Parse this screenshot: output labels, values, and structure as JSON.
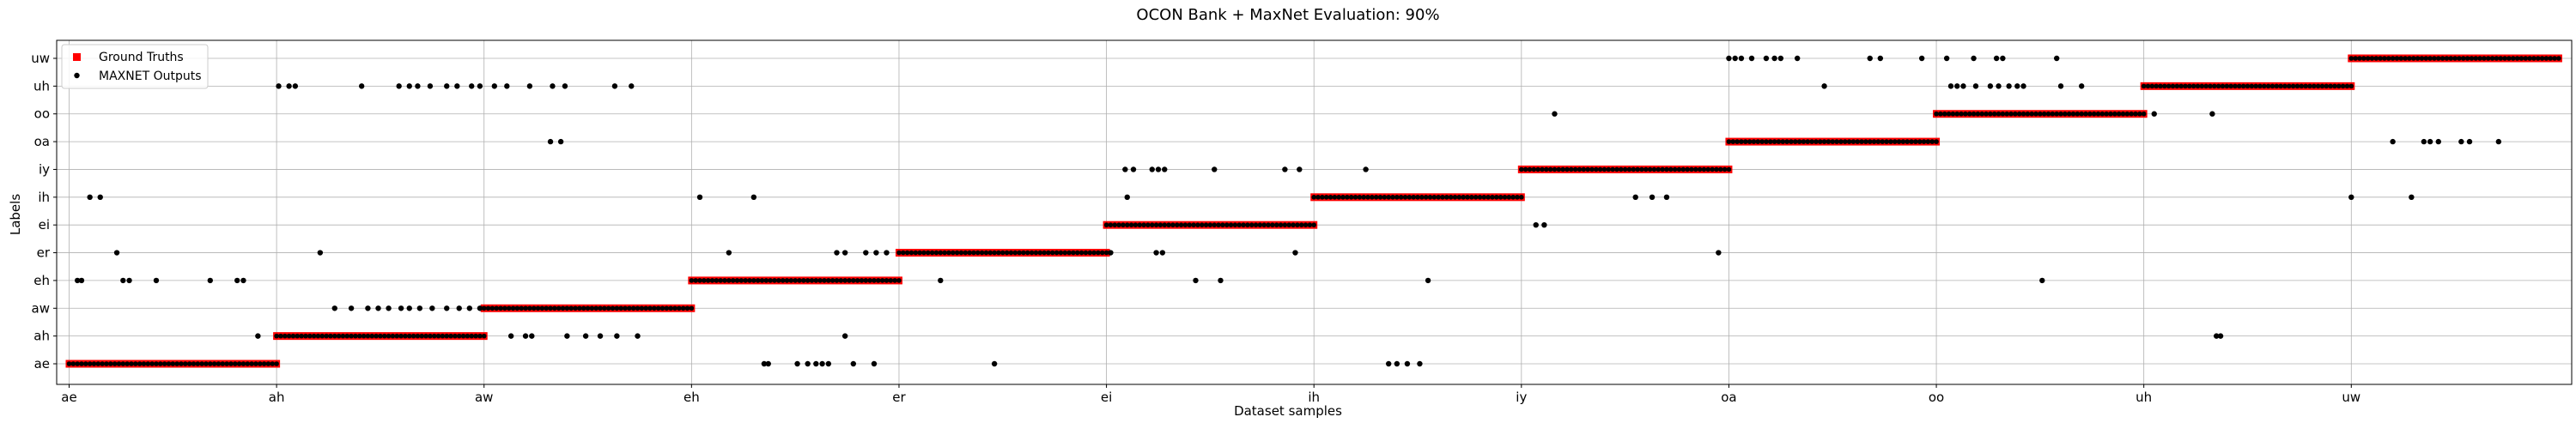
{
  "chart_data": {
    "type": "scatter",
    "title": "OCON Bank + MaxNet Evaluation: 90%",
    "xlabel": "Dataset samples",
    "ylabel": "Labels",
    "y_categories": [
      "ae",
      "ah",
      "aw",
      "eh",
      "er",
      "ei",
      "ih",
      "iy",
      "oa",
      "oo",
      "uh",
      "uw"
    ],
    "x_tick_labels": [
      "ae",
      "ah",
      "aw",
      "eh",
      "er",
      "ei",
      "ih",
      "iy",
      "oa",
      "oo",
      "uh",
      "uw"
    ],
    "x_tick_positions": [
      0,
      100,
      200,
      300,
      400,
      500,
      600,
      700,
      800,
      900,
      1000,
      1100
    ],
    "xlim": [
      -6,
      1205
    ],
    "grid": true,
    "legend_placement": "top-left",
    "legend": [
      "Ground Truths",
      "MAXNET Outputs"
    ],
    "colors": {
      "ground_truth": "#ff0000",
      "maxnet": "#000000",
      "grid": "#b0b0b0"
    },
    "series": [
      {
        "name": "Ground Truths",
        "marker": "square",
        "segments": [
          {
            "label": "ae",
            "x_start": 0,
            "x_end": 100
          },
          {
            "label": "ah",
            "x_start": 100,
            "x_end": 200
          },
          {
            "label": "aw",
            "x_start": 200,
            "x_end": 300
          },
          {
            "label": "eh",
            "x_start": 300,
            "x_end": 400
          },
          {
            "label": "er",
            "x_start": 400,
            "x_end": 500
          },
          {
            "label": "ei",
            "x_start": 500,
            "x_end": 600
          },
          {
            "label": "ih",
            "x_start": 600,
            "x_end": 700
          },
          {
            "label": "iy",
            "x_start": 700,
            "x_end": 800
          },
          {
            "label": "oa",
            "x_start": 800,
            "x_end": 900
          },
          {
            "label": "oo",
            "x_start": 900,
            "x_end": 1000
          },
          {
            "label": "uh",
            "x_start": 1000,
            "x_end": 1100
          },
          {
            "label": "uw",
            "x_start": 1100,
            "x_end": 1200
          }
        ]
      },
      {
        "name": "MAXNET Outputs",
        "marker": "circle",
        "runs": [
          {
            "label": "ae",
            "x_start": 0,
            "x_end": 100,
            "step": 2
          },
          {
            "label": "ah",
            "x_start": 100,
            "x_end": 200,
            "step": 2
          },
          {
            "label": "aw",
            "x_start": 200,
            "x_end": 300,
            "step": 2
          },
          {
            "label": "eh",
            "x_start": 300,
            "x_end": 400,
            "step": 2
          },
          {
            "label": "er",
            "x_start": 400,
            "x_end": 500,
            "step": 2
          },
          {
            "label": "ei",
            "x_start": 500,
            "x_end": 600,
            "step": 2
          },
          {
            "label": "ih",
            "x_start": 600,
            "x_end": 700,
            "step": 2
          },
          {
            "label": "iy",
            "x_start": 700,
            "x_end": 800,
            "step": 2
          },
          {
            "label": "oa",
            "x_start": 800,
            "x_end": 900,
            "step": 2
          },
          {
            "label": "oo",
            "x_start": 900,
            "x_end": 1000,
            "step": 2
          },
          {
            "label": "uh",
            "x_start": 1000,
            "x_end": 1100,
            "step": 2
          },
          {
            "label": "uw",
            "x_start": 1100,
            "x_end": 1200,
            "step": 2
          }
        ],
        "outliers": [
          {
            "x": 4,
            "label": "eh"
          },
          {
            "x": 6,
            "label": "eh"
          },
          {
            "x": 10,
            "label": "ih"
          },
          {
            "x": 15,
            "label": "ih"
          },
          {
            "x": 23,
            "label": "er"
          },
          {
            "x": 26,
            "label": "eh"
          },
          {
            "x": 29,
            "label": "eh"
          },
          {
            "x": 42,
            "label": "eh"
          },
          {
            "x": 68,
            "label": "eh"
          },
          {
            "x": 81,
            "label": "eh"
          },
          {
            "x": 84,
            "label": "eh"
          },
          {
            "x": 91,
            "label": "ah"
          },
          {
            "x": 101,
            "label": "uh"
          },
          {
            "x": 106,
            "label": "uh"
          },
          {
            "x": 109,
            "label": "uh"
          },
          {
            "x": 121,
            "label": "er"
          },
          {
            "x": 128,
            "label": "aw"
          },
          {
            "x": 136,
            "label": "aw"
          },
          {
            "x": 144,
            "label": "aw"
          },
          {
            "x": 149,
            "label": "aw"
          },
          {
            "x": 154,
            "label": "aw"
          },
          {
            "x": 160,
            "label": "aw"
          },
          {
            "x": 141,
            "label": "uh"
          },
          {
            "x": 164,
            "label": "aw"
          },
          {
            "x": 169,
            "label": "aw"
          },
          {
            "x": 175,
            "label": "aw"
          },
          {
            "x": 182,
            "label": "aw"
          },
          {
            "x": 188,
            "label": "aw"
          },
          {
            "x": 193,
            "label": "aw"
          },
          {
            "x": 198,
            "label": "aw"
          },
          {
            "x": 159,
            "label": "uh"
          },
          {
            "x": 164,
            "label": "uh"
          },
          {
            "x": 168,
            "label": "uh"
          },
          {
            "x": 174,
            "label": "uh"
          },
          {
            "x": 182,
            "label": "uh"
          },
          {
            "x": 187,
            "label": "uh"
          },
          {
            "x": 194,
            "label": "uh"
          },
          {
            "x": 198,
            "label": "uh"
          },
          {
            "x": 205,
            "label": "uh"
          },
          {
            "x": 211,
            "label": "uh"
          },
          {
            "x": 222,
            "label": "uh"
          },
          {
            "x": 233,
            "label": "uh"
          },
          {
            "x": 239,
            "label": "uh"
          },
          {
            "x": 263,
            "label": "uh"
          },
          {
            "x": 271,
            "label": "uh"
          },
          {
            "x": 213,
            "label": "ah"
          },
          {
            "x": 220,
            "label": "ah"
          },
          {
            "x": 223,
            "label": "ah"
          },
          {
            "x": 240,
            "label": "ah"
          },
          {
            "x": 249,
            "label": "ah"
          },
          {
            "x": 256,
            "label": "ah"
          },
          {
            "x": 264,
            "label": "ah"
          },
          {
            "x": 274,
            "label": "ah"
          },
          {
            "x": 232,
            "label": "oa"
          },
          {
            "x": 237,
            "label": "oa"
          },
          {
            "x": 304,
            "label": "ih"
          },
          {
            "x": 318,
            "label": "er"
          },
          {
            "x": 330,
            "label": "ih"
          },
          {
            "x": 335,
            "label": "ae"
          },
          {
            "x": 337,
            "label": "ae"
          },
          {
            "x": 351,
            "label": "ae"
          },
          {
            "x": 356,
            "label": "ae"
          },
          {
            "x": 360,
            "label": "ae"
          },
          {
            "x": 363,
            "label": "ae"
          },
          {
            "x": 366,
            "label": "ae"
          },
          {
            "x": 378,
            "label": "ae"
          },
          {
            "x": 388,
            "label": "ae"
          },
          {
            "x": 374,
            "label": "ah"
          },
          {
            "x": 370,
            "label": "er"
          },
          {
            "x": 374,
            "label": "er"
          },
          {
            "x": 384,
            "label": "er"
          },
          {
            "x": 389,
            "label": "er"
          },
          {
            "x": 394,
            "label": "er"
          },
          {
            "x": 420,
            "label": "eh"
          },
          {
            "x": 446,
            "label": "ae"
          },
          {
            "x": 502,
            "label": "er"
          },
          {
            "x": 509,
            "label": "iy"
          },
          {
            "x": 513,
            "label": "iy"
          },
          {
            "x": 510,
            "label": "ih"
          },
          {
            "x": 522,
            "label": "iy"
          },
          {
            "x": 525,
            "label": "iy"
          },
          {
            "x": 528,
            "label": "iy"
          },
          {
            "x": 524,
            "label": "er"
          },
          {
            "x": 527,
            "label": "er"
          },
          {
            "x": 543,
            "label": "eh"
          },
          {
            "x": 552,
            "label": "iy"
          },
          {
            "x": 555,
            "label": "eh"
          },
          {
            "x": 586,
            "label": "iy"
          },
          {
            "x": 593,
            "label": "iy"
          },
          {
            "x": 591,
            "label": "er"
          },
          {
            "x": 625,
            "label": "iy"
          },
          {
            "x": 636,
            "label": "ae"
          },
          {
            "x": 640,
            "label": "ae"
          },
          {
            "x": 645,
            "label": "ae"
          },
          {
            "x": 651,
            "label": "ae"
          },
          {
            "x": 655,
            "label": "eh"
          },
          {
            "x": 707,
            "label": "ei"
          },
          {
            "x": 711,
            "label": "ei"
          },
          {
            "x": 716,
            "label": "oo"
          },
          {
            "x": 755,
            "label": "ih"
          },
          {
            "x": 763,
            "label": "ih"
          },
          {
            "x": 770,
            "label": "ih"
          },
          {
            "x": 795,
            "label": "er"
          },
          {
            "x": 800,
            "label": "uw"
          },
          {
            "x": 803,
            "label": "uw"
          },
          {
            "x": 806,
            "label": "uw"
          },
          {
            "x": 811,
            "label": "uw"
          },
          {
            "x": 818,
            "label": "uw"
          },
          {
            "x": 822,
            "label": "uw"
          },
          {
            "x": 825,
            "label": "uw"
          },
          {
            "x": 833,
            "label": "uw"
          },
          {
            "x": 846,
            "label": "uh"
          },
          {
            "x": 868,
            "label": "uw"
          },
          {
            "x": 873,
            "label": "uw"
          },
          {
            "x": 893,
            "label": "uw"
          },
          {
            "x": 907,
            "label": "uh"
          },
          {
            "x": 910,
            "label": "uh"
          },
          {
            "x": 913,
            "label": "uh"
          },
          {
            "x": 919,
            "label": "uh"
          },
          {
            "x": 926,
            "label": "uh"
          },
          {
            "x": 930,
            "label": "uh"
          },
          {
            "x": 935,
            "label": "uh"
          },
          {
            "x": 939,
            "label": "uh"
          },
          {
            "x": 942,
            "label": "uh"
          },
          {
            "x": 960,
            "label": "uh"
          },
          {
            "x": 970,
            "label": "uh"
          },
          {
            "x": 905,
            "label": "uw"
          },
          {
            "x": 918,
            "label": "uw"
          },
          {
            "x": 929,
            "label": "uw"
          },
          {
            "x": 932,
            "label": "uw"
          },
          {
            "x": 958,
            "label": "uw"
          },
          {
            "x": 951,
            "label": "eh"
          },
          {
            "x": 1005,
            "label": "oo"
          },
          {
            "x": 1033,
            "label": "oo"
          },
          {
            "x": 1035,
            "label": "ah"
          },
          {
            "x": 1037,
            "label": "ah"
          },
          {
            "x": 1100,
            "label": "ih"
          },
          {
            "x": 1129,
            "label": "ih"
          },
          {
            "x": 1120,
            "label": "oa"
          },
          {
            "x": 1135,
            "label": "oa"
          },
          {
            "x": 1138,
            "label": "oa"
          },
          {
            "x": 1142,
            "label": "oa"
          },
          {
            "x": 1153,
            "label": "oa"
          },
          {
            "x": 1157,
            "label": "oa"
          },
          {
            "x": 1171,
            "label": "oa"
          }
        ]
      }
    ]
  }
}
